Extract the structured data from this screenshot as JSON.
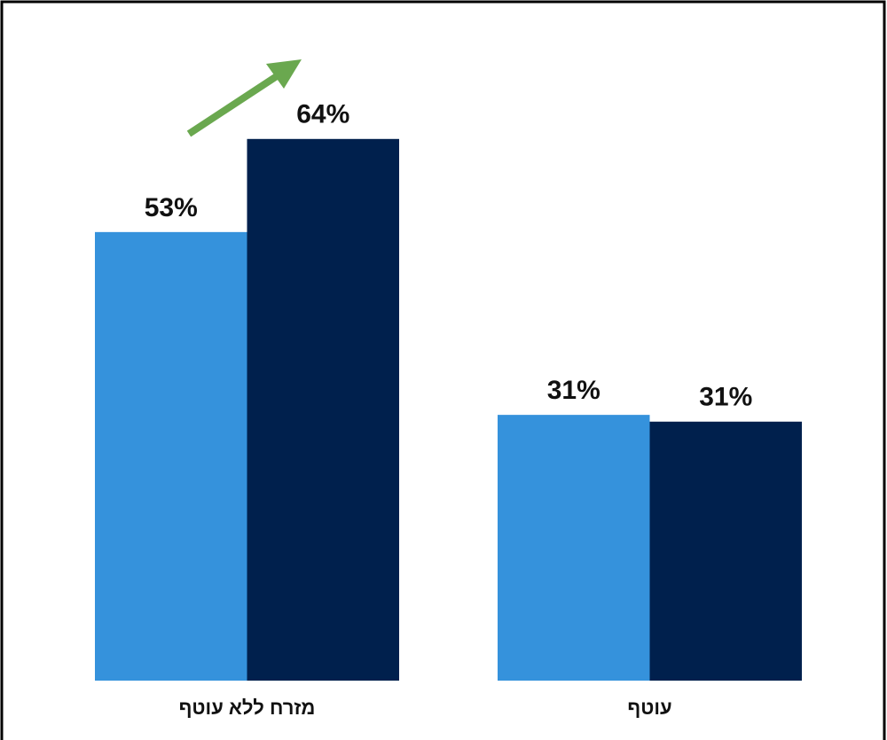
{
  "chart_data": {
    "type": "bar",
    "categories": [
      "מזרח ללא עוטף",
      "עוטף"
    ],
    "series": [
      {
        "color": "#3592dc",
        "values": [
          53,
          31.4
        ],
        "value_labels": [
          "53%",
          "31%"
        ]
      },
      {
        "color": "#00204d",
        "values": [
          64,
          30.6
        ],
        "value_labels": [
          "64%",
          "31%"
        ]
      }
    ],
    "ylim": [
      0,
      80
    ]
  }
}
